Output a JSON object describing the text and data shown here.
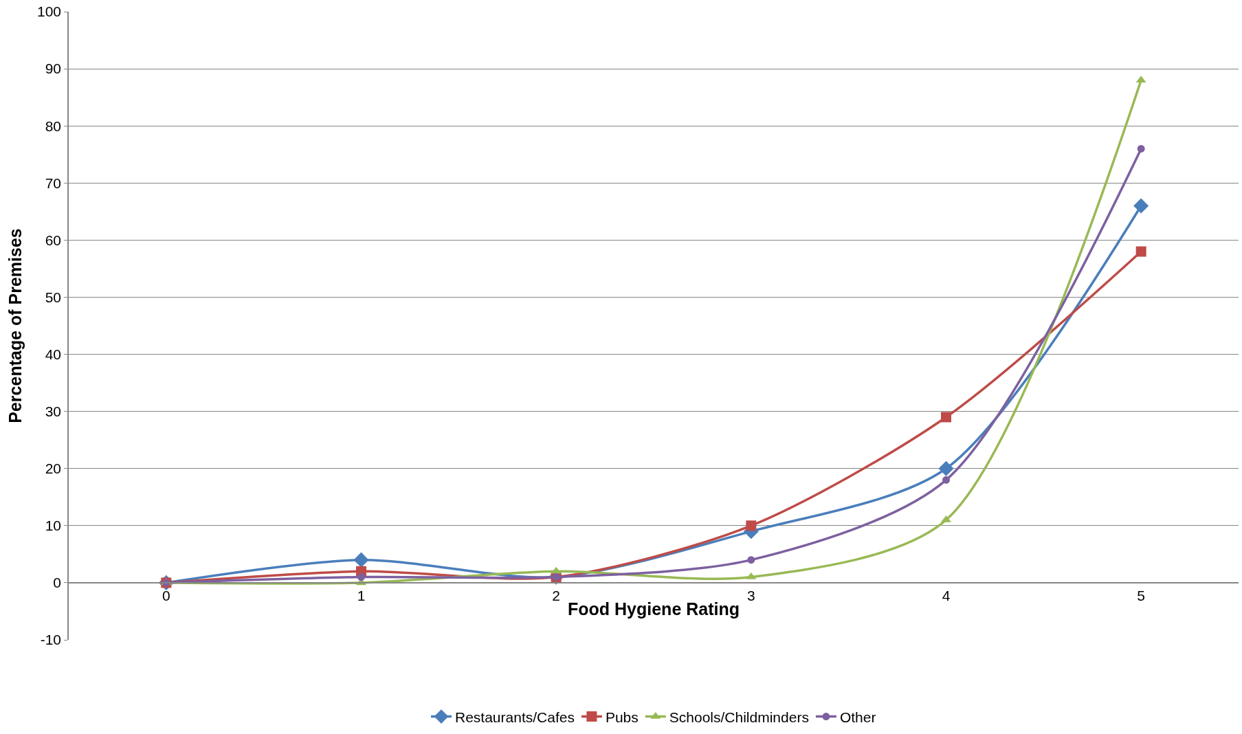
{
  "chart_data": {
    "type": "line",
    "xlabel": "Food Hygiene Rating",
    "ylabel": "Percentage of Premises",
    "categories": [
      "0",
      "1",
      "2",
      "3",
      "4",
      "5"
    ],
    "series": [
      {
        "name": "Restaurants/Cafes",
        "color": "#4a7ebb",
        "marker": "diamond",
        "values": [
          0,
          4,
          1,
          9,
          20,
          66
        ]
      },
      {
        "name": "Pubs",
        "color": "#be4b48",
        "marker": "square",
        "values": [
          0,
          2,
          1,
          10,
          29,
          58
        ]
      },
      {
        "name": "Schools/Childminders",
        "color": "#98b954",
        "marker": "triangle",
        "values": [
          0,
          0,
          2,
          1,
          11,
          88
        ]
      },
      {
        "name": "Other",
        "color": "#7d60a0",
        "marker": "circle",
        "values": [
          0,
          1,
          1,
          4,
          18,
          76
        ]
      }
    ],
    "ylim": [
      -10,
      100
    ],
    "yticks": [
      -10,
      0,
      10,
      20,
      30,
      40,
      50,
      60,
      70,
      80,
      90,
      100
    ],
    "grid": "y",
    "legend": "bottom",
    "line_style": "solid"
  }
}
